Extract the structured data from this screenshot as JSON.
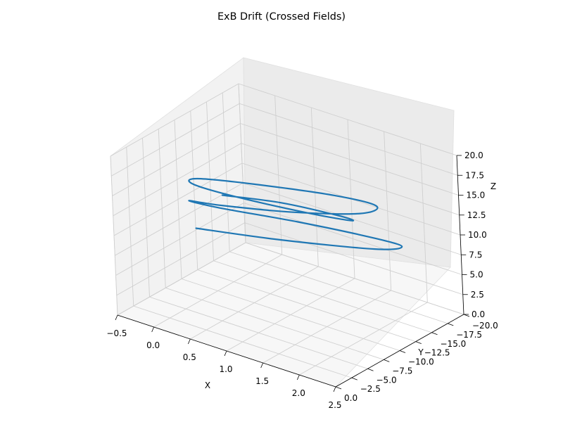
{
  "chart_data": {
    "type": "line",
    "projection": "3d",
    "title": "ExB Drift (Crossed Fields)",
    "xlabel": "X",
    "ylabel": "Y",
    "zlabel": "Z",
    "xlim": [
      -0.5,
      2.5
    ],
    "ylim": [
      -20.0,
      0.0
    ],
    "zlim": [
      0.0,
      20.0
    ],
    "x_ticks": [
      "−0.5",
      "0.0",
      "0.5",
      "1.0",
      "1.5",
      "2.0",
      "2.5"
    ],
    "y_ticks": [
      "0.0",
      "−2.5",
      "−5.0",
      "−7.5",
      "−10.0",
      "−12.5",
      "−15.0",
      "−17.5",
      "−20.0"
    ],
    "z_ticks": [
      "0.0",
      "2.5",
      "5.0",
      "7.5",
      "10.0",
      "12.5",
      "15.0",
      "17.5",
      "20.0"
    ],
    "grid": true,
    "series": [
      {
        "color": "#1f77b4",
        "x": [
          0.1,
          0.95,
          1.85,
          2.0,
          1.6,
          0.7,
          -0.1,
          -0.35,
          0.2,
          1.1,
          1.8,
          1.85,
          1.3,
          0.4,
          -0.2,
          -0.15,
          0.45,
          1.35,
          1.8,
          1.55,
          0.8,
          0.12
        ],
        "y": [
          -6.0,
          -9.5,
          -14.0,
          -16.5,
          -17.0,
          -15.0,
          -12.0,
          -10.0,
          -9.0,
          -10.0,
          -12.5,
          -14.5,
          -14.2,
          -12.0,
          -9.8,
          -8.6,
          -8.6,
          -9.8,
          -11.2,
          -12.0,
          -11.5,
          -10.0
        ],
        "z": [
          10.0,
          9.5,
          9.0,
          8.6,
          8.2,
          8.5,
          9.2,
          10.3,
          11.8,
          13.2,
          14.0,
          14.2,
          14.0,
          13.7,
          13.6,
          13.6,
          13.8,
          13.9,
          13.7,
          13.2,
          12.8,
          12.4
        ]
      }
    ]
  }
}
